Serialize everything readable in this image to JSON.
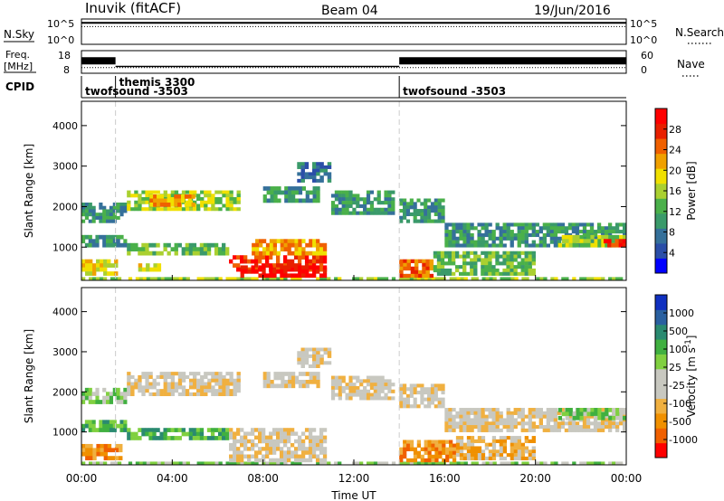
{
  "header": {
    "station": "Inuvik (fitACF)",
    "beam": "Beam 04",
    "date": "19/Jun/2016"
  },
  "nsky_panel": {
    "left_label": "N.Sky",
    "right_label": "N.Search",
    "left_ticks": [
      "10^5",
      "10^0"
    ],
    "right_ticks": [
      "10^5",
      "10^0"
    ]
  },
  "freq_panel": {
    "left_label_line1": "Freq.",
    "left_label_line2": "[MHz]",
    "left_ticks": [
      "18",
      "8"
    ],
    "right_label": "Nave",
    "right_ticks": [
      "60",
      "0"
    ]
  },
  "cpid_panel": {
    "label": "CPID",
    "segments": [
      {
        "name": "twofsound -3503",
        "start_hour": 0.0
      },
      {
        "name": "themis 3300",
        "start_hour": 1.5
      },
      {
        "name": "twofsound -3503",
        "start_hour": 14.0
      }
    ]
  },
  "time_axis": {
    "label": "Time UT",
    "ticks": [
      "00:00",
      "04:00",
      "08:00",
      "12:00",
      "16:00",
      "20:00",
      "00:00"
    ],
    "range_hours": [
      0,
      24
    ]
  },
  "chart_data": [
    {
      "type": "heatmap",
      "parameter": "Power",
      "ylabel": "Slant Range [km]",
      "yticks": [
        1000,
        2000,
        3000,
        4000
      ],
      "ylim": [
        180,
        4600
      ],
      "colorbar_label": "Power [dB]",
      "colorbar_ticks": [
        "28",
        "24",
        "20",
        "16",
        "12",
        "8",
        "4"
      ],
      "colorbar_colors": [
        "#0000ff",
        "#2a4ea8",
        "#35709a",
        "#3a9a6a",
        "#4ab04a",
        "#aad030",
        "#f0e000",
        "#f0a000",
        "#f06000",
        "#e82000",
        "#ff0000"
      ],
      "regions": [
        {
          "t0": 0.0,
          "t1": 24.0,
          "r0": 180,
          "r1": 260,
          "level": 5
        },
        {
          "t0": 0.0,
          "t1": 1.6,
          "r0": 300,
          "r1": 700,
          "level": 6
        },
        {
          "t0": 0.0,
          "t1": 2.0,
          "r0": 1000,
          "r1": 1300,
          "level": 3
        },
        {
          "t0": 0.0,
          "t1": 2.0,
          "r0": 1600,
          "r1": 2100,
          "level": 3
        },
        {
          "t0": 2.0,
          "t1": 6.5,
          "r0": 800,
          "r1": 1100,
          "level": 4
        },
        {
          "t0": 2.0,
          "t1": 7.0,
          "r0": 1900,
          "r1": 2400,
          "level": 5
        },
        {
          "t0": 3.0,
          "t1": 5.0,
          "r0": 2000,
          "r1": 2300,
          "level": 7
        },
        {
          "t0": 2.5,
          "t1": 3.5,
          "r0": 400,
          "r1": 600,
          "level": 6
        },
        {
          "t0": 6.5,
          "t1": 10.8,
          "r0": 400,
          "r1": 800,
          "level": 9
        },
        {
          "t0": 7.0,
          "t1": 10.8,
          "r0": 250,
          "r1": 550,
          "level": 10
        },
        {
          "t0": 7.5,
          "t1": 10.8,
          "r0": 800,
          "r1": 1200,
          "level": 7
        },
        {
          "t0": 8.0,
          "t1": 10.5,
          "r0": 2100,
          "r1": 2500,
          "level": 3
        },
        {
          "t0": 9.5,
          "t1": 11.0,
          "r0": 2600,
          "r1": 3100,
          "level": 2
        },
        {
          "t0": 11.0,
          "t1": 13.8,
          "r0": 1800,
          "r1": 2400,
          "level": 3
        },
        {
          "t0": 14.0,
          "t1": 15.5,
          "r0": 250,
          "r1": 700,
          "level": 8
        },
        {
          "t0": 14.0,
          "t1": 16.0,
          "r0": 1600,
          "r1": 2200,
          "level": 3
        },
        {
          "t0": 15.5,
          "t1": 20.0,
          "r0": 300,
          "r1": 900,
          "level": 4
        },
        {
          "t0": 16.0,
          "t1": 24.0,
          "r0": 1000,
          "r1": 1600,
          "level": 3
        },
        {
          "t0": 21.0,
          "t1": 24.0,
          "r0": 1000,
          "r1": 1300,
          "level": 5
        },
        {
          "t0": 23.0,
          "t1": 24.0,
          "r0": 1000,
          "r1": 1200,
          "level": 9
        }
      ]
    },
    {
      "type": "heatmap",
      "parameter": "Velocity",
      "ylabel": "Slant Range [km]",
      "yticks": [
        1000,
        2000,
        3000,
        4000
      ],
      "ylim": [
        180,
        4600
      ],
      "colorbar_label": "Velocity [m s",
      "colorbar_label_sup": "-1",
      "colorbar_label_end": "]",
      "colorbar_ticks": [
        "1000",
        "500",
        "100",
        "25",
        "-25",
        "-100",
        "-500",
        "-1000"
      ],
      "colorbar_colors": [
        "#ff0000",
        "#f06000",
        "#f09000",
        "#f0b040",
        "#c8c8c0",
        "#c8c8c0",
        "#80d040",
        "#40b040",
        "#2a8a70",
        "#2a60a0",
        "#1030c0"
      ],
      "regions": [
        {
          "t0": 0.0,
          "t1": 24.0,
          "r0": 180,
          "r1": 260,
          "level": 6
        },
        {
          "t0": 0.0,
          "t1": 1.8,
          "r0": 300,
          "r1": 700,
          "level": 2
        },
        {
          "t0": 0.0,
          "t1": 2.0,
          "r0": 1000,
          "r1": 1300,
          "level": 7
        },
        {
          "t0": 0.0,
          "t1": 2.0,
          "r0": 1700,
          "r1": 2100,
          "level": 6
        },
        {
          "t0": 2.0,
          "t1": 7.0,
          "r0": 1900,
          "r1": 2500,
          "level": 4
        },
        {
          "t0": 2.0,
          "t1": 6.5,
          "r0": 800,
          "r1": 1100,
          "level": 7
        },
        {
          "t0": 6.5,
          "t1": 10.8,
          "r0": 250,
          "r1": 1100,
          "level": 4
        },
        {
          "t0": 8.0,
          "t1": 10.5,
          "r0": 2100,
          "r1": 2500,
          "level": 4
        },
        {
          "t0": 9.5,
          "t1": 11.0,
          "r0": 2600,
          "r1": 3100,
          "level": 4
        },
        {
          "t0": 11.0,
          "t1": 13.8,
          "r0": 1800,
          "r1": 2400,
          "level": 4
        },
        {
          "t0": 14.0,
          "t1": 16.5,
          "r0": 250,
          "r1": 800,
          "level": 2
        },
        {
          "t0": 14.0,
          "t1": 16.0,
          "r0": 1600,
          "r1": 2200,
          "level": 4
        },
        {
          "t0": 16.5,
          "t1": 20.0,
          "r0": 300,
          "r1": 900,
          "level": 3
        },
        {
          "t0": 16.0,
          "t1": 24.0,
          "r0": 1000,
          "r1": 1600,
          "level": 4
        },
        {
          "t0": 21.0,
          "t1": 24.0,
          "r0": 1300,
          "r1": 1600,
          "level": 6
        }
      ]
    }
  ],
  "series_lines": {
    "nsky_level": 0.85,
    "nsearch_level": 0.7,
    "freq_hours": [
      [
        0,
        1.5,
        0.55
      ],
      [
        1.5,
        14.0,
        0.3
      ],
      [
        14.0,
        24.0,
        0.55
      ]
    ],
    "nave_level": 0.25
  }
}
